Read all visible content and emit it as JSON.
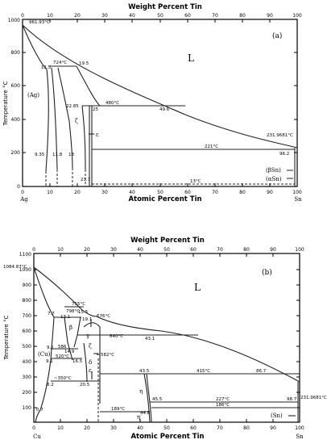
{
  "panel_a": {
    "title_top": "Weight Percent Tin",
    "title_bottom": "Atomic Percent Tin",
    "ylabel": "Temperature °C",
    "panel_label": "(a)",
    "liquid": "L",
    "left_element": "Ag",
    "right_element": "Sn",
    "top_ticks": [
      "0",
      "10",
      "20",
      "30",
      "40",
      "50",
      "60",
      "70",
      "80",
      "90",
      "100"
    ],
    "bottom_ticks": [
      "0",
      "10",
      "20",
      "30",
      "40",
      "50",
      "60",
      "70",
      "80",
      "90",
      "100"
    ],
    "y_ticks": [
      "0",
      "200",
      "400",
      "600",
      "800",
      "1000"
    ],
    "phases": [
      "(Ag)",
      "ζ",
      "ε",
      "(βSn)",
      "(αSn)"
    ],
    "annotations": {
      "melt_ag": "961.93°C",
      "t724": "724°C",
      "c11_5": "11.5",
      "c19_5": "19.5",
      "t480": "480°C",
      "c22_85": "22.85",
      "c25": "25",
      "c49_6": "49.6",
      "melt_sn": "231.9681°C",
      "t221": "221°C",
      "c96_2": "96.2",
      "c9_35": "9.35",
      "c11_8": "11.8",
      "c18": "18",
      "c23_7": "23.7",
      "t13": "13°C"
    }
  },
  "panel_b": {
    "title_top": "Weight Percent Tin",
    "title_bottom": "Atomic Percent Tin",
    "ylabel": "Temperature °C",
    "panel_label": "(b)",
    "liquid": "L",
    "left_element": "Cu",
    "right_element": "Sn",
    "top_ticks": [
      "0",
      "10",
      "20",
      "30",
      "40",
      "50",
      "60",
      "70",
      "80",
      "90",
      "100"
    ],
    "bottom_ticks": [
      "0",
      "10",
      "20",
      "30",
      "40",
      "50",
      "60",
      "70",
      "80",
      "90",
      "100"
    ],
    "y_ticks": [
      "100",
      "200",
      "300",
      "400",
      "500",
      "600",
      "700",
      "800",
      "900",
      "1000",
      "1100"
    ],
    "phases": [
      "(Cu)",
      "β",
      "γ",
      "ζ",
      "δ",
      "ε",
      "η",
      "η′",
      "(Sn)"
    ],
    "annotations": {
      "melt_cu": "1084.87°C",
      "t755": "755°C",
      "t798": "798°C",
      "t676": "676°C",
      "c7_7": "7.7",
      "c13_1": "13.1",
      "c15_5": "15.5",
      "c19_1": "19.1",
      "t640": "640°C",
      "c43_1": "43.1",
      "c9_1a": "9.1",
      "t586": "586",
      "t520": "520°C",
      "c14_9": "14.9",
      "c9_1b": "9.1",
      "c16_5": "16.5",
      "t582": "582°C",
      "t350": "~350°C",
      "c8_2": "8.2",
      "c20_5": "20.5",
      "c43_5": "43.5",
      "t415": "415°C",
      "c86_7": "86.7",
      "c45_5": "45.5",
      "t227": "227°C",
      "c98_7": "98.7",
      "t189": "189°C",
      "t186": "186°C",
      "c44_8": "44.8",
      "c0_7": "0.7",
      "melt_sn": "231.9681°C"
    }
  }
}
